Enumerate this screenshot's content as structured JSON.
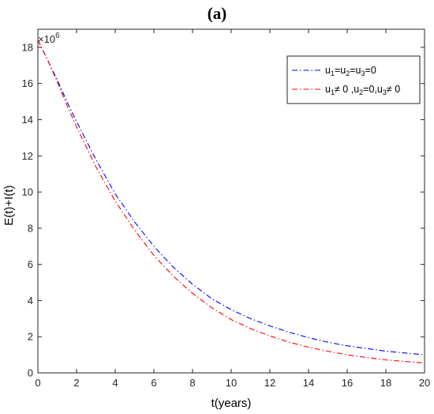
{
  "figure": {
    "panel_label_open": "(",
    "panel_label_letter": "a",
    "panel_label_close": ")"
  },
  "chart_data": {
    "type": "line",
    "title": "(a)",
    "xlabel": "t(years)",
    "ylabel": "E(t)+I(t)",
    "y_multiplier_base": "×10",
    "y_multiplier_exponent": "6",
    "xlim": [
      0,
      20
    ],
    "ylim": [
      0,
      19
    ],
    "xticks": [
      0,
      2,
      4,
      6,
      8,
      10,
      12,
      14,
      16,
      18,
      20
    ],
    "yticks": [
      0,
      2,
      4,
      6,
      8,
      10,
      12,
      14,
      16,
      18
    ],
    "grid": false,
    "legend_position": "top-right",
    "series": [
      {
        "name": "u1=u2=u3=0",
        "legend": [
          {
            "t": "u",
            "s": ""
          },
          {
            "t": "1",
            "s": "sub"
          },
          {
            "t": "=u",
            "s": ""
          },
          {
            "t": "2",
            "s": "sub"
          },
          {
            "t": "=u",
            "s": ""
          },
          {
            "t": "3",
            "s": "sub"
          },
          {
            "t": "=0",
            "s": ""
          }
        ],
        "color": "#0000ff",
        "style": "dash-dot",
        "x": [
          0,
          0.5,
          1,
          1.5,
          2,
          3,
          4,
          5,
          6,
          7,
          8,
          9,
          10,
          11,
          12,
          13,
          14,
          15,
          16,
          17,
          18,
          19,
          20
        ],
        "y": [
          18.4,
          17.3,
          16.2,
          15.0,
          13.9,
          11.8,
          9.9,
          8.35,
          7.0,
          5.85,
          4.9,
          4.1,
          3.5,
          3.0,
          2.6,
          2.25,
          1.95,
          1.7,
          1.5,
          1.35,
          1.2,
          1.1,
          1.0
        ]
      },
      {
        "name": "u1≠ 0 ,u2=0,u3≠ 0",
        "legend": [
          {
            "t": "u",
            "s": ""
          },
          {
            "t": "1",
            "s": "sub"
          },
          {
            "t": "≠ 0 ,u",
            "s": ""
          },
          {
            "t": "2",
            "s": "sub"
          },
          {
            "t": "=0,u",
            "s": ""
          },
          {
            "t": "3",
            "s": "sub"
          },
          {
            "t": "≠ 0",
            "s": ""
          }
        ],
        "color": "#ff0000",
        "style": "dash-dot",
        "x": [
          0,
          0.5,
          1,
          1.5,
          2,
          3,
          4,
          5,
          6,
          7,
          8,
          9,
          10,
          11,
          12,
          13,
          14,
          15,
          16,
          17,
          18,
          19,
          20
        ],
        "y": [
          18.4,
          17.3,
          16.1,
          14.8,
          13.6,
          11.4,
          9.5,
          7.9,
          6.5,
          5.35,
          4.4,
          3.6,
          2.95,
          2.45,
          2.05,
          1.7,
          1.42,
          1.2,
          1.0,
          0.85,
          0.72,
          0.63,
          0.55
        ]
      }
    ]
  }
}
